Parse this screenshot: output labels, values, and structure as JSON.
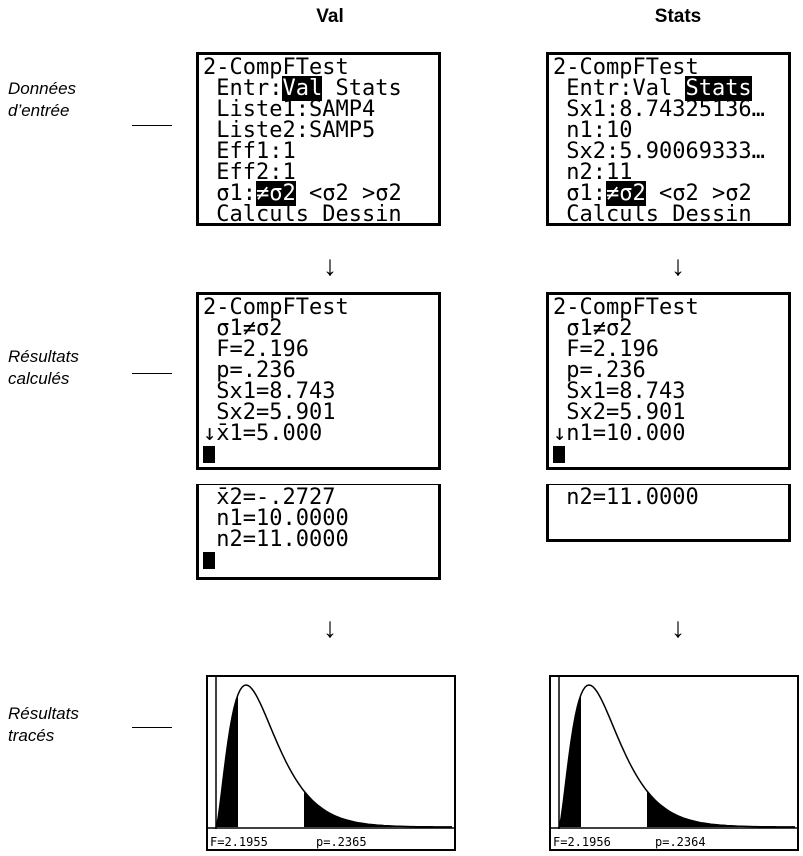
{
  "row_labels": [
    [
      "Données",
      "d’entrée"
    ],
    [
      "Résultats",
      "calculés"
    ],
    [
      "Résultats",
      "tracés"
    ]
  ],
  "columns": [
    {
      "header": "Val",
      "input": [
        [
          "2-CompFTest"
        ],
        [
          " Entr:",
          {
            "text": "Val",
            "highlight": true
          },
          " Stats"
        ],
        [
          " Liste1:SAMP4"
        ],
        [
          " Liste2:SAMP5"
        ],
        [
          " Eff1:1"
        ],
        [
          " Eff2:1"
        ],
        [
          " σ1:",
          {
            "text": "≠σ2",
            "highlight": true
          },
          " <σ2 >σ2"
        ],
        [
          " Calculs Dessin"
        ]
      ],
      "results": [
        [
          "2-CompFTest"
        ],
        [
          " σ1≠σ2"
        ],
        [
          " F=2.196"
        ],
        [
          " p=.236"
        ],
        [
          " Sx1=8.743"
        ],
        [
          " Sx2=5.901"
        ],
        [
          "↓x̄1=5.000"
        ]
      ],
      "results_more": [
        [
          " x̄2=-.2727"
        ],
        [
          " n1=10.0000"
        ],
        [
          " n2=11.0000"
        ]
      ],
      "graph": {
        "f_label": "F=2.1955",
        "p_label": "p=.2365"
      }
    },
    {
      "header": "Stats",
      "input": [
        [
          "2-CompFTest"
        ],
        [
          " Entr:Val ",
          {
            "text": "Stats",
            "highlight": true
          }
        ],
        [
          " Sx1:8.74325136…"
        ],
        [
          " n1:10"
        ],
        [
          " Sx2:5.90069333…"
        ],
        [
          " n2:11"
        ],
        [
          " σ1:",
          {
            "text": "≠σ2",
            "highlight": true
          },
          " <σ2 >σ2"
        ],
        [
          " Calculs Dessin"
        ]
      ],
      "results": [
        [
          "2-CompFTest"
        ],
        [
          " σ1≠σ2"
        ],
        [
          " F=2.196"
        ],
        [
          " p=.236"
        ],
        [
          " Sx1=8.743"
        ],
        [
          " Sx2=5.901"
        ],
        [
          "↓n1=10.000"
        ]
      ],
      "results_more": [
        [
          " n2=11.0000"
        ]
      ],
      "graph": {
        "f_label": "F=2.1956",
        "p_label": "p=.2364"
      }
    }
  ]
}
